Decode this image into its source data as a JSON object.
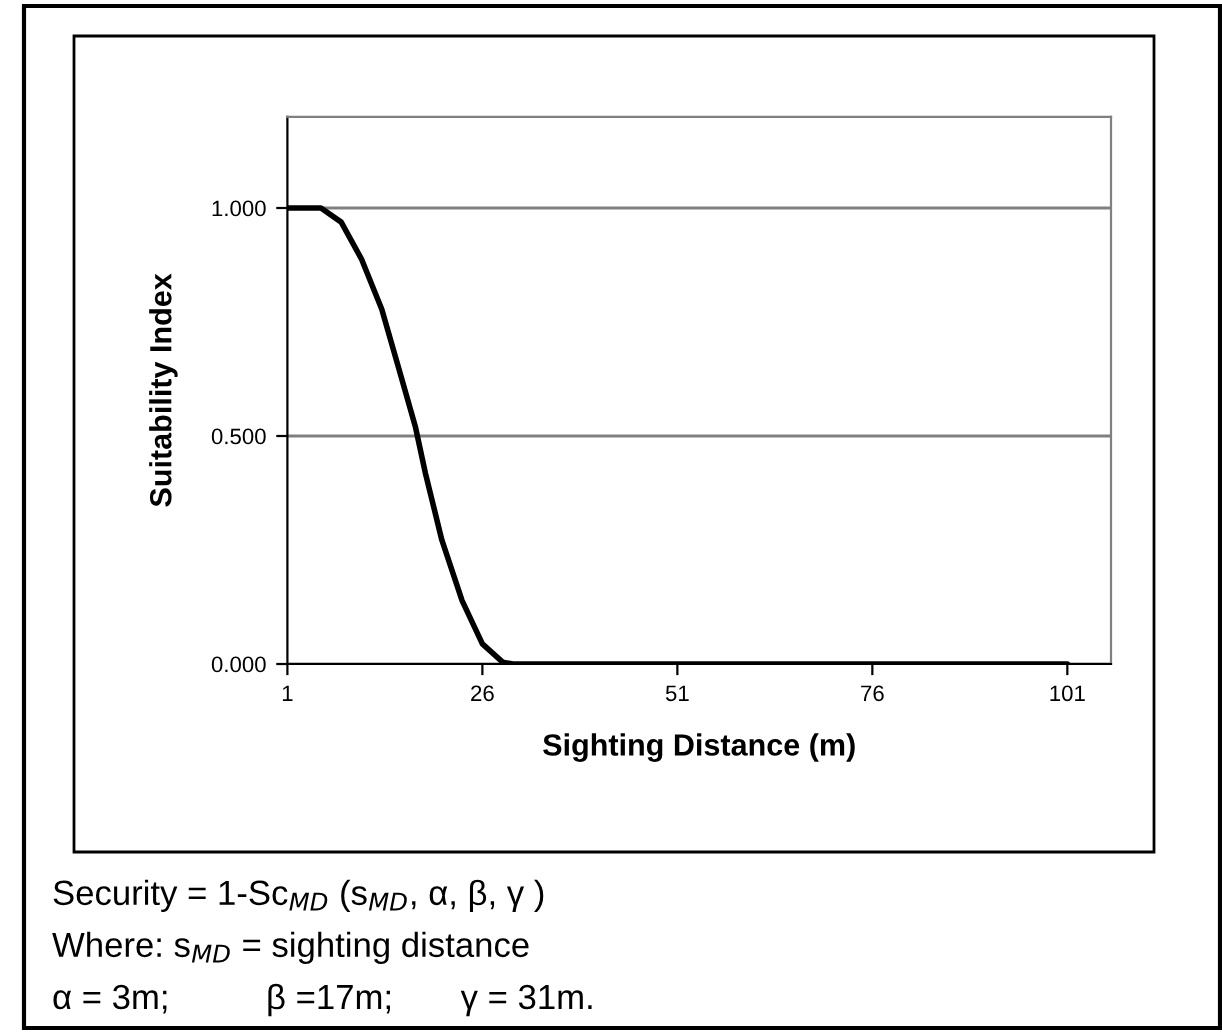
{
  "chart_data": {
    "type": "line",
    "xlabel": "Sighting Distance (m)",
    "ylabel": "Suitability Index",
    "xlim": [
      1,
      106.6
    ],
    "xticks": [
      1,
      26,
      51,
      76,
      101
    ],
    "ylim": [
      0,
      1.2
    ],
    "yticks": [
      {
        "value": 0,
        "label": "0.000"
      },
      {
        "value": 0.5,
        "label": "0.500"
      },
      {
        "value": 1,
        "label": "1.000"
      }
    ],
    "grid": "y",
    "marker": "none",
    "line_style": "solid",
    "series": [
      {
        "color": "#000000",
        "x": [
          1,
          3,
          5.3,
          7.9,
          10.5,
          13.1,
          15.2,
          17.4,
          18.7,
          20.8,
          23.4,
          26,
          28.6,
          29.9,
          40,
          60,
          80,
          101
        ],
        "values": [
          1,
          1,
          1,
          0.969,
          0.888,
          0.778,
          0.653,
          0.521,
          0.418,
          0.272,
          0.139,
          0.044,
          0.004,
          0,
          0,
          0,
          0,
          0
        ]
      }
    ],
    "annotations": [
      "Security = 1-Sc$_{MD}$ (s$_{MD}$, α, β, γ )",
      "Where: s$_{MD}$ = sighting distance",
      "α = 3m;          β =17m;       γ = 31m."
    ]
  }
}
